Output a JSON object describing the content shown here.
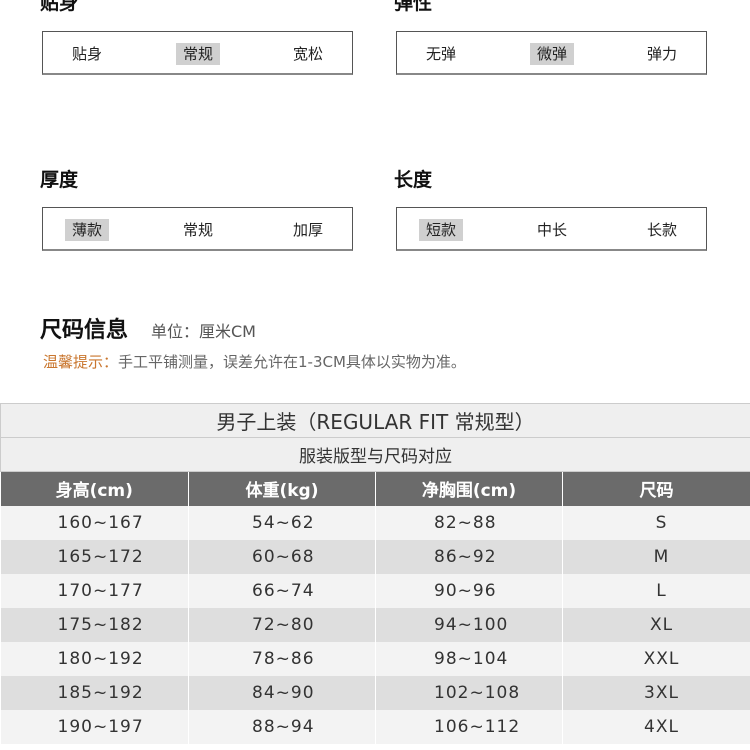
{
  "attributes": [
    {
      "title": "贴身",
      "options": [
        "贴身",
        "常规",
        "宽松"
      ],
      "selected": 1
    },
    {
      "title": "弹性",
      "options": [
        "无弹",
        "微弹",
        "弹力"
      ],
      "selected": 1
    },
    {
      "title": "厚度",
      "options": [
        "薄款",
        "常规",
        "加厚"
      ],
      "selected": 0
    },
    {
      "title": "长度",
      "options": [
        "短款",
        "中长",
        "长款"
      ],
      "selected": 0
    }
  ],
  "size_info": {
    "title": "尺码信息",
    "unit": "单位：厘米CM",
    "tip_label": "温馨提示：",
    "tip_text": "手工平铺测量，误差允许在1-3CM具体以实物为准。"
  },
  "table": {
    "title": "男子上装（REGULAR FIT 常规型）",
    "subtitle": "服装版型与尺码对应",
    "headers": [
      "身高(cm)",
      "体重(kg)",
      "净胸围(cm)",
      "尺码"
    ],
    "rows": [
      [
        "160~167",
        "54~62",
        "82~88",
        "S"
      ],
      [
        "165~172",
        "60~68",
        "86~92",
        "M"
      ],
      [
        "170~177",
        "66~74",
        "90~96",
        "L"
      ],
      [
        "175~182",
        "72~80",
        "94~100",
        "XL"
      ],
      [
        "180~192",
        "78~86",
        "98~104",
        "XXL"
      ],
      [
        "185~192",
        "84~90",
        "102~108",
        "3XL"
      ],
      [
        "190~197",
        "88~94",
        "106~112",
        "4XL"
      ]
    ]
  },
  "colors": {
    "highlight": "#d0d0d0",
    "header_bg": "#6b6b6b",
    "tip_label": "#c9762e"
  }
}
